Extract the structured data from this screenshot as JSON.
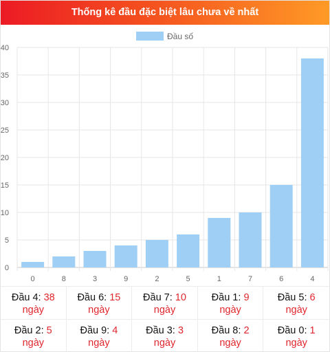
{
  "header": {
    "title": "Thống kê đầu đặc biệt lâu chưa về nhất"
  },
  "colors": {
    "bar": "#9fcff4",
    "header_start": "#ec1b24",
    "header_end": "#ff9a26",
    "accent": "#e1262d"
  },
  "chart_data": {
    "type": "bar",
    "title": "",
    "xlabel": "",
    "ylabel": "",
    "categories": [
      "0",
      "8",
      "3",
      "9",
      "2",
      "5",
      "1",
      "7",
      "6",
      "4"
    ],
    "series": [
      {
        "name": "Đầu số",
        "values": [
          1,
          2,
          3,
          4,
          5,
          6,
          9,
          10,
          15,
          38
        ]
      }
    ],
    "ylim": [
      0,
      40
    ],
    "yticks": [
      0,
      5,
      10,
      15,
      20,
      25,
      30,
      35,
      40
    ],
    "grid": true,
    "legend": "top-center"
  },
  "stats": [
    {
      "label": "Đầu 4:",
      "value": "38",
      "unit": "ngày"
    },
    {
      "label": "Đầu 6:",
      "value": "15",
      "unit": "ngày"
    },
    {
      "label": "Đầu 7:",
      "value": "10",
      "unit": "ngày"
    },
    {
      "label": "Đầu 1:",
      "value": "9",
      "unit": "ngày"
    },
    {
      "label": "Đầu 5:",
      "value": "6",
      "unit": "ngày"
    },
    {
      "label": "Đầu 2:",
      "value": "5",
      "unit": "ngày"
    },
    {
      "label": "Đầu 9:",
      "value": "4",
      "unit": "ngày"
    },
    {
      "label": "Đầu 3:",
      "value": "3",
      "unit": "ngày"
    },
    {
      "label": "Đầu 8:",
      "value": "2",
      "unit": "ngày"
    },
    {
      "label": "Đầu 0:",
      "value": "1",
      "unit": "ngày"
    }
  ]
}
